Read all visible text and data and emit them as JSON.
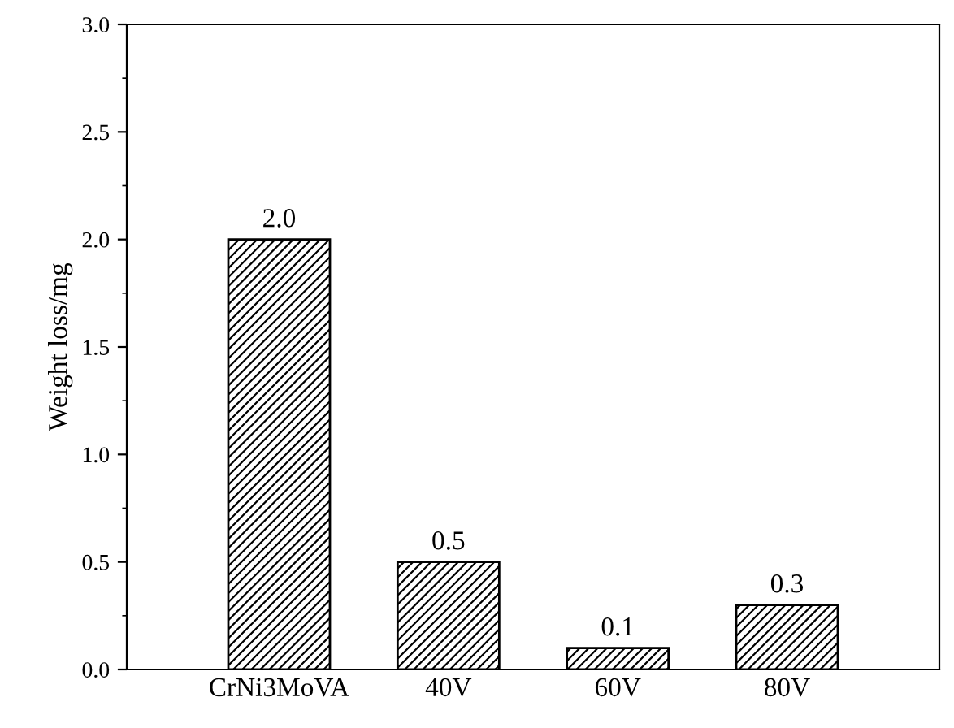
{
  "chart_data": {
    "type": "bar",
    "ylabel": "Weight loss/mg",
    "categories": [
      "CrNi3MoVA",
      "40V",
      "60V",
      "80V"
    ],
    "values": [
      2.0,
      0.5,
      0.1,
      0.3
    ],
    "color": "#000000",
    "ylim": [
      0,
      3.0
    ],
    "yticks": [
      {
        "value": 0,
        "label": "0.0"
      },
      0.5,
      {
        "value": 1,
        "label": "1.0"
      },
      1.5,
      {
        "value": 2,
        "label": "2.0"
      },
      2.5,
      {
        "value": 3,
        "label": "3.0"
      }
    ],
    "value_labels": [
      "2.0",
      "0.5",
      "0.1",
      "0.3"
    ],
    "grid": false,
    "legend": false
  }
}
